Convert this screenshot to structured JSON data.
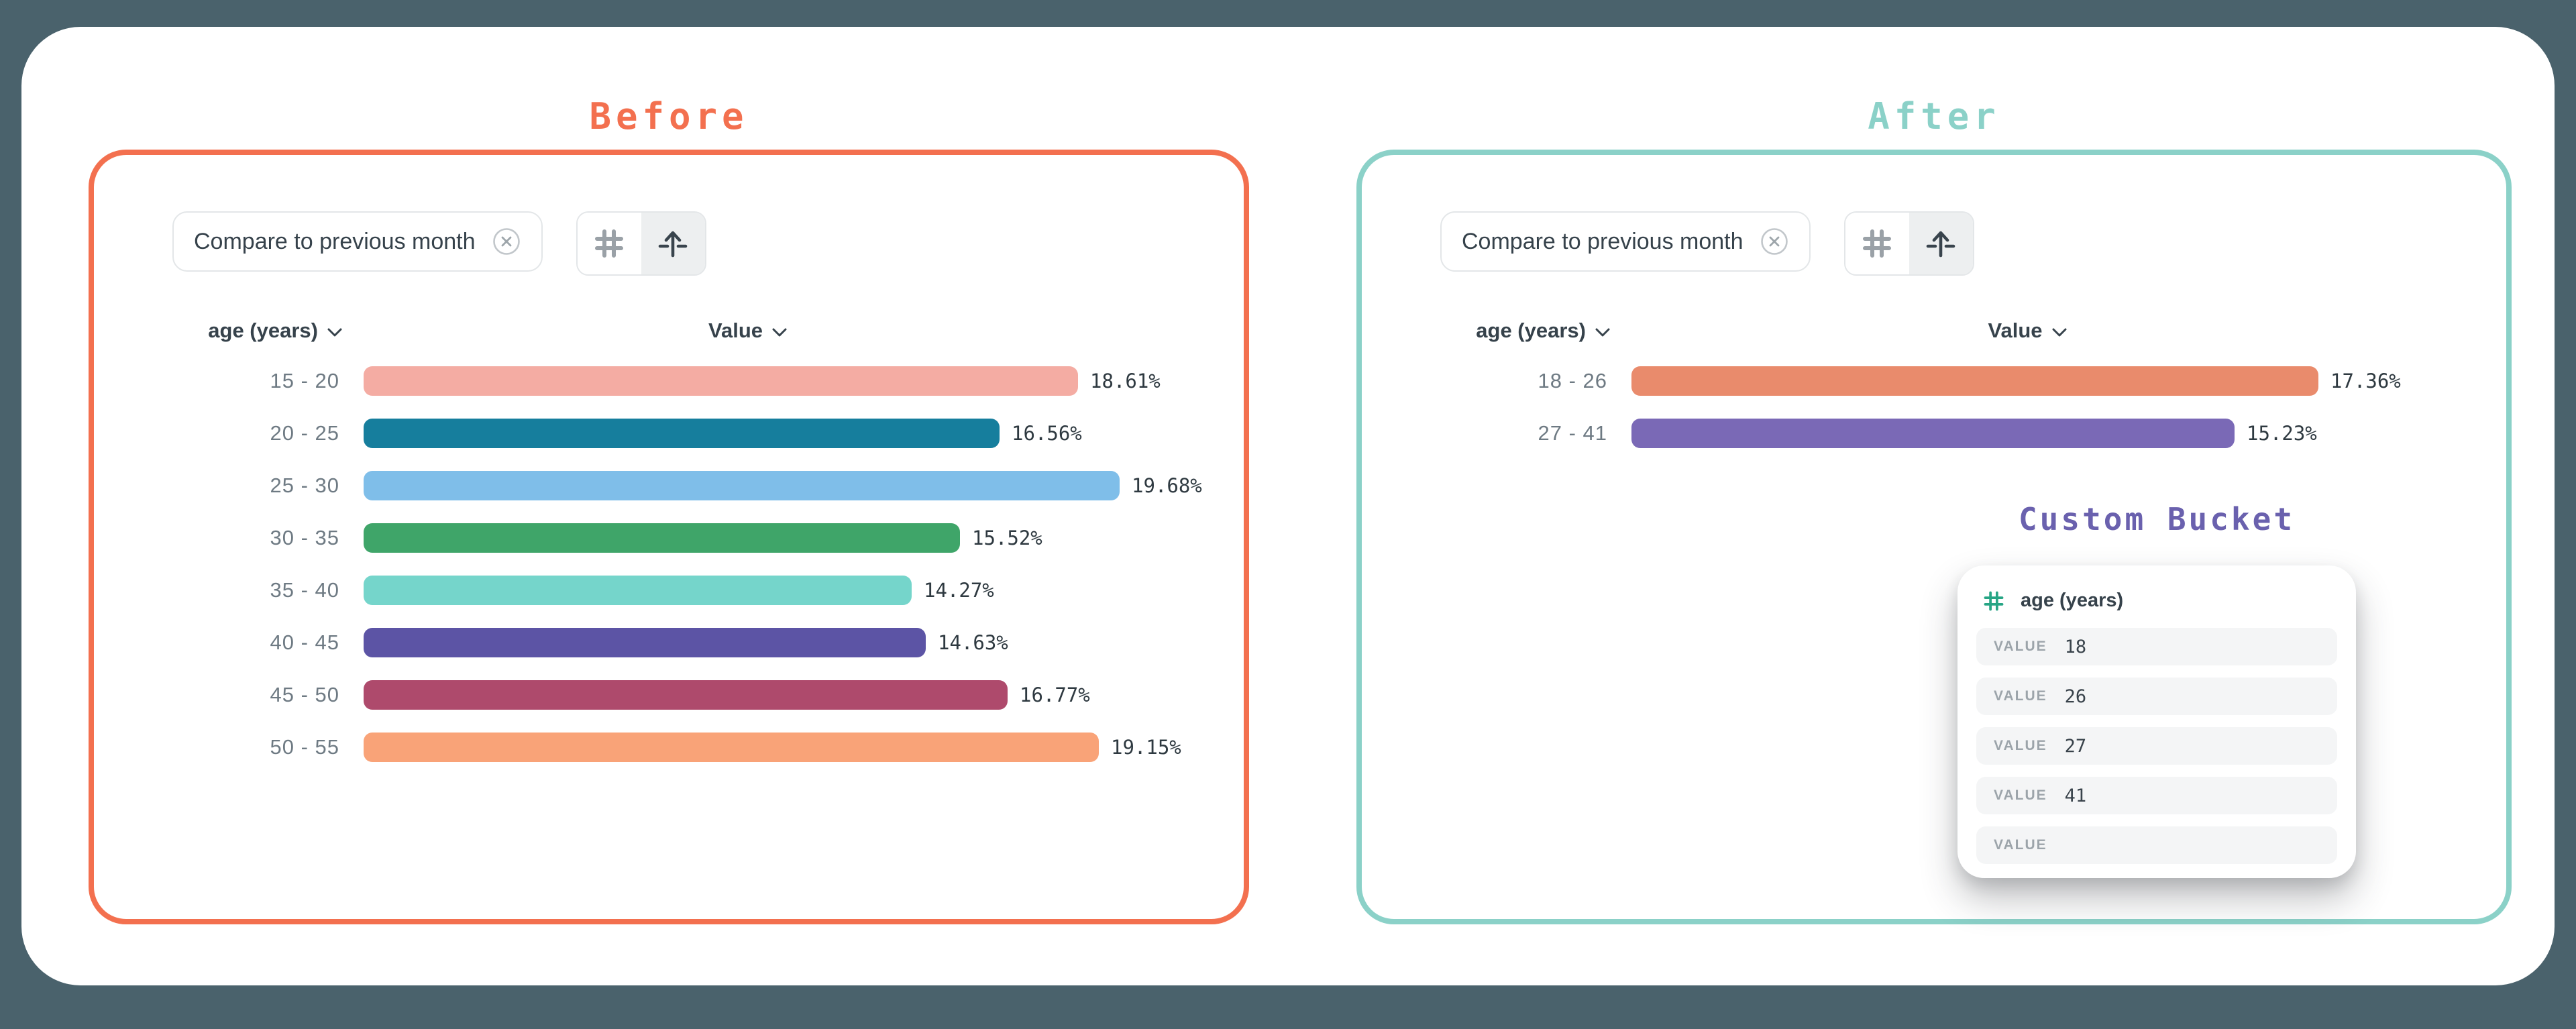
{
  "page": {
    "background_color": "#4a626c"
  },
  "panels": {
    "before": {
      "title": "Before",
      "accent_color": "#f3704f",
      "filter_chip_label": "Compare to previous month",
      "dimension_header": "age (years)",
      "value_header": "Value"
    },
    "after": {
      "title": "After",
      "accent_color": "#8bd1c8",
      "filter_chip_label": "Compare to previous month",
      "dimension_header": "age (years)",
      "value_header": "Value",
      "custom_bucket": {
        "title": "Custom Bucket",
        "title_color": "#6a61ae",
        "icon_color": "#27a585",
        "field_label": "age (years)",
        "rows": [
          {
            "label": "VALUE",
            "value": "18"
          },
          {
            "label": "VALUE",
            "value": "26"
          },
          {
            "label": "VALUE",
            "value": "27"
          },
          {
            "label": "VALUE",
            "value": "41"
          },
          {
            "label": "VALUE",
            "value": ""
          }
        ]
      }
    }
  },
  "chart_data": [
    {
      "id": "before",
      "type": "bar",
      "orientation": "horizontal",
      "title": "Before",
      "xlabel": "Value",
      "ylabel": "age (years)",
      "xlim": [
        0,
        20
      ],
      "grid": false,
      "legend": false,
      "categories": [
        "15 - 20",
        "20 - 25",
        "25 - 30",
        "30 - 35",
        "35 - 40",
        "40 - 45",
        "45 - 50",
        "50 - 55"
      ],
      "values": [
        18.61,
        16.56,
        19.68,
        15.52,
        14.27,
        14.63,
        16.77,
        19.15
      ],
      "value_labels": [
        "18.61%",
        "16.56%",
        "19.68%",
        "15.52%",
        "14.27%",
        "14.63%",
        "16.77%",
        "19.15%"
      ],
      "colors": [
        "#f4aca3",
        "#167e9d",
        "#7fbee9",
        "#3fa569",
        "#75d5cb",
        "#5c54a5",
        "#ae4a6c",
        "#f9a378"
      ]
    },
    {
      "id": "after",
      "type": "bar",
      "orientation": "horizontal",
      "title": "After",
      "xlabel": "Value",
      "ylabel": "age (years)",
      "xlim": [
        0,
        20
      ],
      "grid": false,
      "legend": false,
      "categories": [
        "18 - 26",
        "27 - 41"
      ],
      "values": [
        17.36,
        15.23
      ],
      "value_labels": [
        "17.36%",
        "15.23%"
      ],
      "colors": [
        "#e98b6c",
        "#7a69b6"
      ]
    }
  ]
}
